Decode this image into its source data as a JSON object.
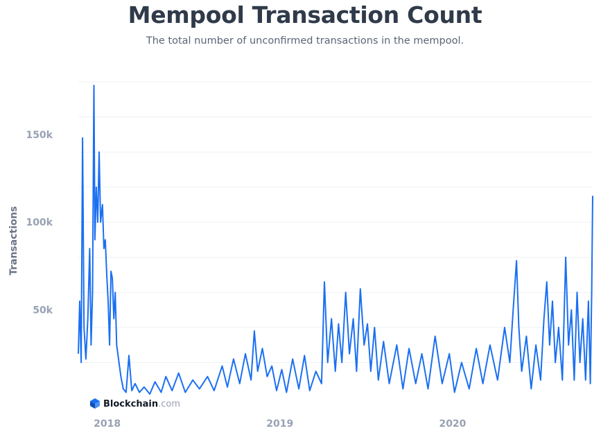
{
  "title": "Mempool Transaction Count",
  "subtitle": "The total number of unconfirmed transactions in the mempool.",
  "brand": {
    "name": "Blockchain",
    "suffix": ".com"
  },
  "colors": {
    "line": "#1a6ff2",
    "grid": "#eef0f4",
    "title": "#2f3a4a",
    "tick": "#98a1b3"
  },
  "chart_data": {
    "type": "line",
    "title": "Mempool Transaction Count",
    "ylabel": "Transactions",
    "xlabel": "",
    "grid": true,
    "ylim": [
      0,
      180000
    ],
    "xlim": [
      "2017-11-01",
      "2020-10-23"
    ],
    "yticks": [
      {
        "value": 50000,
        "label": "50k"
      },
      {
        "value": 100000,
        "label": "100k"
      },
      {
        "value": 150000,
        "label": "150k"
      }
    ],
    "xticks": [
      {
        "date": "2018-01-01",
        "label": "2018"
      },
      {
        "date": "2019-01-01",
        "label": "2019"
      },
      {
        "date": "2020-01-01",
        "label": "2020"
      }
    ],
    "series": [
      {
        "points": [
          [
            "2017-11-01",
            25000
          ],
          [
            "2017-11-04",
            55000
          ],
          [
            "2017-11-07",
            20000
          ],
          [
            "2017-11-10",
            148000
          ],
          [
            "2017-11-13",
            40000
          ],
          [
            "2017-11-17",
            22000
          ],
          [
            "2017-11-21",
            45000
          ],
          [
            "2017-11-25",
            85000
          ],
          [
            "2017-11-28",
            30000
          ],
          [
            "2017-12-01",
            60000
          ],
          [
            "2017-12-04",
            178000
          ],
          [
            "2017-12-06",
            90000
          ],
          [
            "2017-12-09",
            120000
          ],
          [
            "2017-12-12",
            100000
          ],
          [
            "2017-12-15",
            140000
          ],
          [
            "2017-12-18",
            100000
          ],
          [
            "2017-12-22",
            110000
          ],
          [
            "2017-12-25",
            85000
          ],
          [
            "2017-12-28",
            90000
          ],
          [
            "2017-12-31",
            70000
          ],
          [
            "2018-01-03",
            55000
          ],
          [
            "2018-01-06",
            30000
          ],
          [
            "2018-01-09",
            72000
          ],
          [
            "2018-01-12",
            68000
          ],
          [
            "2018-01-15",
            45000
          ],
          [
            "2018-01-18",
            60000
          ],
          [
            "2018-01-21",
            30000
          ],
          [
            "2018-01-25",
            22000
          ],
          [
            "2018-01-30",
            12000
          ],
          [
            "2018-02-04",
            5000
          ],
          [
            "2018-02-10",
            3000
          ],
          [
            "2018-02-16",
            24000
          ],
          [
            "2018-02-22",
            4000
          ],
          [
            "2018-03-01",
            8000
          ],
          [
            "2018-03-10",
            3000
          ],
          [
            "2018-03-20",
            6000
          ],
          [
            "2018-04-01",
            2000
          ],
          [
            "2018-04-12",
            9000
          ],
          [
            "2018-04-25",
            3000
          ],
          [
            "2018-05-05",
            12000
          ],
          [
            "2018-05-18",
            4000
          ],
          [
            "2018-06-01",
            14000
          ],
          [
            "2018-06-15",
            3000
          ],
          [
            "2018-07-01",
            10000
          ],
          [
            "2018-07-15",
            5000
          ],
          [
            "2018-08-01",
            12000
          ],
          [
            "2018-08-15",
            4000
          ],
          [
            "2018-09-01",
            18000
          ],
          [
            "2018-09-12",
            6000
          ],
          [
            "2018-09-25",
            22000
          ],
          [
            "2018-10-08",
            8000
          ],
          [
            "2018-10-20",
            25000
          ],
          [
            "2018-11-01",
            10000
          ],
          [
            "2018-11-08",
            38000
          ],
          [
            "2018-11-15",
            15000
          ],
          [
            "2018-11-25",
            28000
          ],
          [
            "2018-12-05",
            12000
          ],
          [
            "2018-12-15",
            18000
          ],
          [
            "2018-12-25",
            4000
          ],
          [
            "2019-01-05",
            16000
          ],
          [
            "2019-01-15",
            3000
          ],
          [
            "2019-01-28",
            22000
          ],
          [
            "2019-02-10",
            5000
          ],
          [
            "2019-02-22",
            24000
          ],
          [
            "2019-03-05",
            4000
          ],
          [
            "2019-03-18",
            15000
          ],
          [
            "2019-03-30",
            8000
          ],
          [
            "2019-04-05",
            66000
          ],
          [
            "2019-04-12",
            20000
          ],
          [
            "2019-04-20",
            45000
          ],
          [
            "2019-04-28",
            15000
          ],
          [
            "2019-05-05",
            42000
          ],
          [
            "2019-05-12",
            20000
          ],
          [
            "2019-05-20",
            60000
          ],
          [
            "2019-05-28",
            25000
          ],
          [
            "2019-06-05",
            45000
          ],
          [
            "2019-06-12",
            15000
          ],
          [
            "2019-06-20",
            62000
          ],
          [
            "2019-06-28",
            30000
          ],
          [
            "2019-07-05",
            42000
          ],
          [
            "2019-07-12",
            15000
          ],
          [
            "2019-07-20",
            40000
          ],
          [
            "2019-07-28",
            10000
          ],
          [
            "2019-08-08",
            32000
          ],
          [
            "2019-08-20",
            8000
          ],
          [
            "2019-09-05",
            30000
          ],
          [
            "2019-09-18",
            5000
          ],
          [
            "2019-10-01",
            28000
          ],
          [
            "2019-10-15",
            8000
          ],
          [
            "2019-10-28",
            25000
          ],
          [
            "2019-11-10",
            5000
          ],
          [
            "2019-11-25",
            35000
          ],
          [
            "2019-12-10",
            8000
          ],
          [
            "2019-12-25",
            25000
          ],
          [
            "2020-01-05",
            3000
          ],
          [
            "2020-01-20",
            20000
          ],
          [
            "2020-02-05",
            5000
          ],
          [
            "2020-02-20",
            28000
          ],
          [
            "2020-03-05",
            8000
          ],
          [
            "2020-03-20",
            30000
          ],
          [
            "2020-04-05",
            10000
          ],
          [
            "2020-04-20",
            40000
          ],
          [
            "2020-05-01",
            20000
          ],
          [
            "2020-05-08",
            50000
          ],
          [
            "2020-05-15",
            78000
          ],
          [
            "2020-05-20",
            40000
          ],
          [
            "2020-05-26",
            15000
          ],
          [
            "2020-06-05",
            35000
          ],
          [
            "2020-06-15",
            5000
          ],
          [
            "2020-06-25",
            30000
          ],
          [
            "2020-07-05",
            10000
          ],
          [
            "2020-07-12",
            45000
          ],
          [
            "2020-07-18",
            66000
          ],
          [
            "2020-07-24",
            30000
          ],
          [
            "2020-07-30",
            55000
          ],
          [
            "2020-08-05",
            20000
          ],
          [
            "2020-08-12",
            40000
          ],
          [
            "2020-08-20",
            10000
          ],
          [
            "2020-08-27",
            80000
          ],
          [
            "2020-09-02",
            30000
          ],
          [
            "2020-09-08",
            50000
          ],
          [
            "2020-09-14",
            10000
          ],
          [
            "2020-09-20",
            60000
          ],
          [
            "2020-09-26",
            20000
          ],
          [
            "2020-10-02",
            45000
          ],
          [
            "2020-10-08",
            10000
          ],
          [
            "2020-10-14",
            55000
          ],
          [
            "2020-10-18",
            8000
          ],
          [
            "2020-10-21",
            60000
          ],
          [
            "2020-10-23",
            115000
          ]
        ]
      }
    ]
  }
}
